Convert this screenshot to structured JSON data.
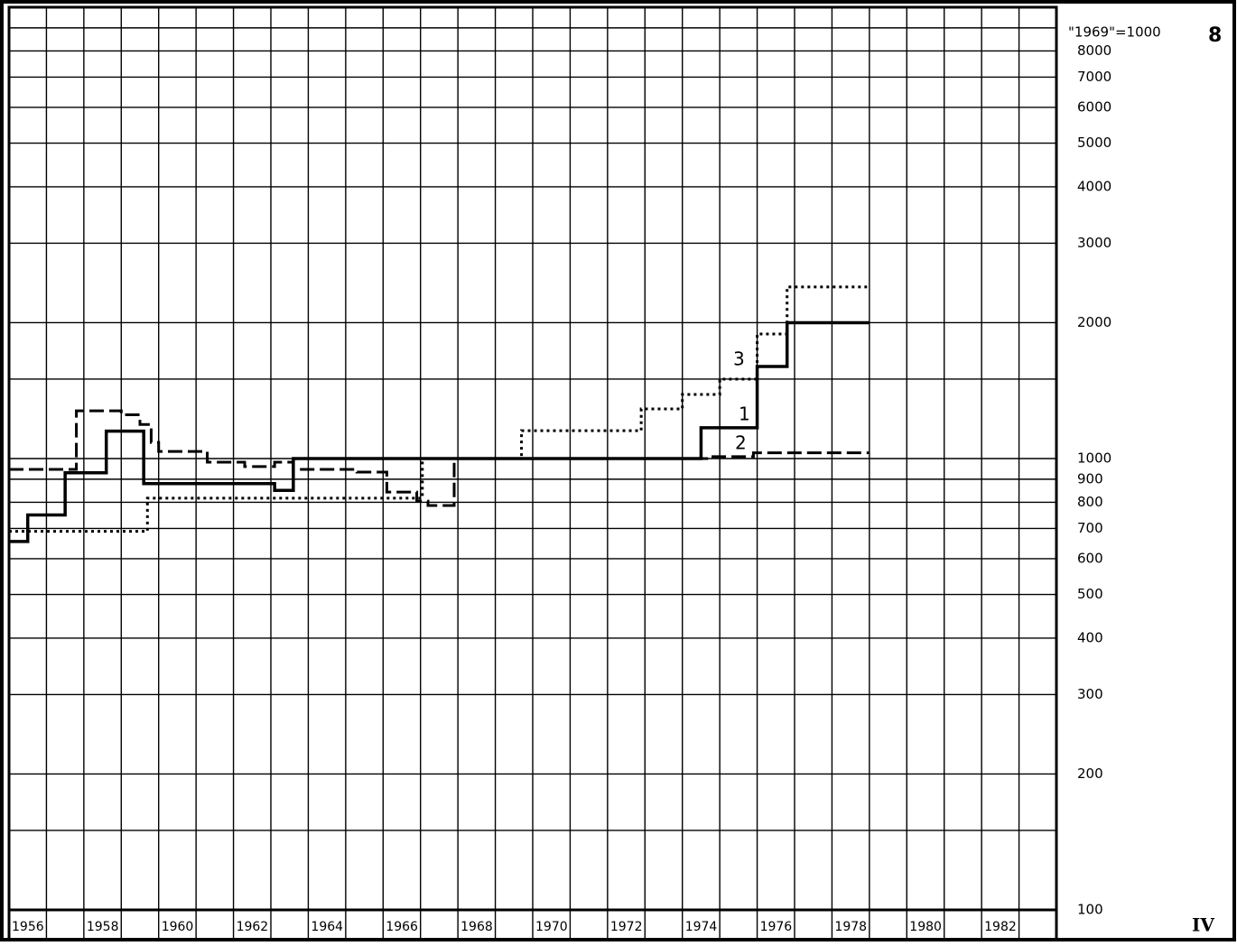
{
  "chart_data": {
    "type": "step",
    "xlim": [
      1956,
      1984
    ],
    "xticks": [
      1956,
      1958,
      1960,
      1962,
      1964,
      1966,
      1968,
      1970,
      1972,
      1974,
      1976,
      1978,
      1980,
      1982
    ],
    "xticks_minor": [
      1957,
      1959,
      1961,
      1963,
      1965,
      1967,
      1969,
      1971,
      1973,
      1975,
      1977,
      1979,
      1981,
      1983
    ],
    "ylim": [
      100,
      10000
    ],
    "log_scale": true,
    "grid": true,
    "yticks": [
      100,
      200,
      300,
      400,
      500,
      600,
      700,
      800,
      900,
      1000,
      2000,
      3000,
      4000,
      5000,
      6000,
      7000,
      8000
    ],
    "yticks_minor": [
      150,
      1500,
      9000
    ],
    "y_axis_title": "\"1969\"=1000",
    "annotations": [
      "1",
      "2",
      "3",
      "8",
      "IV"
    ],
    "series": [
      {
        "name": "1",
        "color": "#000000",
        "line_style": "solid",
        "x": [
          1956,
          1956.5,
          1957.5,
          1958.6,
          1959.6,
          1963.1,
          1963.6,
          1974.5,
          1976,
          1976.8,
          1979
        ],
        "values": [
          655,
          750,
          930,
          1150,
          880,
          850,
          1000,
          1170,
          1600,
          2000,
          2000
        ]
      },
      {
        "name": "2",
        "color": "#000000",
        "line_style": "dashed",
        "x": [
          1956,
          1957.8,
          1959,
          1959.5,
          1959.8,
          1960,
          1961.3,
          1962.3,
          1963.1,
          1963.6,
          1965.3,
          1966.1,
          1966.9,
          1967.2,
          1967.9,
          1974.7,
          1975.9,
          1979
        ],
        "values": [
          946,
          1276,
          1250,
          1190,
          1086,
          1037,
          982,
          960,
          982,
          946,
          933,
          843,
          805,
          787,
          1000,
          1010,
          1030,
          1030
        ]
      },
      {
        "name": "3",
        "color": "#000000",
        "line_style": "dotted",
        "x": [
          1956,
          1959.7,
          1967.05,
          1969.7,
          1972.9,
          1974,
          1975,
          1976,
          1976.8,
          1979
        ],
        "values": [
          690,
          817,
          1000,
          1153,
          1288,
          1387,
          1500,
          1888,
          2400,
          2400
        ]
      }
    ]
  }
}
